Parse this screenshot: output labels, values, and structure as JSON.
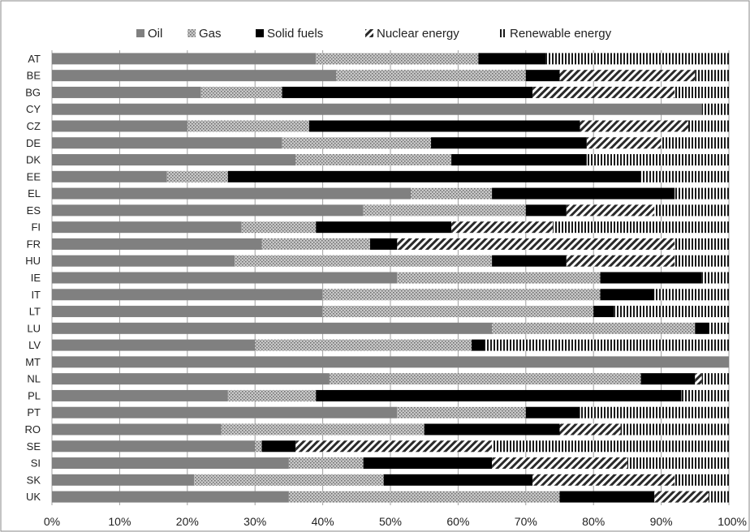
{
  "chart_data": {
    "type": "bar",
    "orientation": "horizontal",
    "stacked": "percent",
    "categories": [
      "AT",
      "BE",
      "BG",
      "CY",
      "CZ",
      "DE",
      "DK",
      "EE",
      "EL",
      "ES",
      "FI",
      "FR",
      "HU",
      "IE",
      "IT",
      "LT",
      "LU",
      "LV",
      "MT",
      "NL",
      "PL",
      "PT",
      "RO",
      "SE",
      "SI",
      "SK",
      "UK"
    ],
    "series": [
      {
        "name": "Oil",
        "color": "#808080",
        "pattern": "solid-gray",
        "values": [
          39,
          42,
          22,
          96,
          20,
          34,
          36,
          17,
          53,
          46,
          28,
          31,
          27,
          51,
          40,
          40,
          65,
          30,
          100,
          41,
          26,
          51,
          25,
          30,
          35,
          21,
          35
        ]
      },
      {
        "name": "Gas",
        "color": "#b0b0b0",
        "pattern": "dots",
        "values": [
          24,
          28,
          12,
          0,
          18,
          22,
          23,
          9,
          12,
          24,
          11,
          16,
          38,
          30,
          41,
          40,
          30,
          32,
          0,
          46,
          13,
          19,
          30,
          1,
          11,
          28,
          40
        ]
      },
      {
        "name": "Solid fuels",
        "color": "#000000",
        "pattern": "solid-black",
        "values": [
          10,
          5,
          37,
          0,
          40,
          23,
          20,
          61,
          27,
          6,
          20,
          4,
          11,
          15,
          8,
          3,
          2,
          2,
          0,
          8,
          54,
          8,
          20,
          5,
          19,
          22,
          14
        ]
      },
      {
        "name": "Nuclear energy",
        "color": "#555555",
        "pattern": "diagonal",
        "values": [
          0,
          20,
          21,
          0,
          16,
          11,
          0,
          0,
          0,
          13,
          15,
          41,
          16,
          0,
          0,
          0,
          0,
          0,
          0,
          1,
          0,
          0,
          9,
          29,
          20,
          21,
          8
        ]
      },
      {
        "name": "Renewable energy",
        "color": "#333333",
        "pattern": "vertical",
        "values": [
          27,
          5,
          8,
          4,
          6,
          10,
          21,
          13,
          8,
          11,
          26,
          8,
          8,
          4,
          11,
          17,
          3,
          36,
          0,
          4,
          7,
          22,
          16,
          35,
          15,
          8,
          3
        ]
      }
    ],
    "x_ticks": [
      "0%",
      "10%",
      "20%",
      "30%",
      "40%",
      "50%",
      "60%",
      "70%",
      "80%",
      "90%",
      "100%"
    ],
    "xlim": [
      0,
      100
    ],
    "grid": "vertical",
    "legend_position": "top"
  }
}
